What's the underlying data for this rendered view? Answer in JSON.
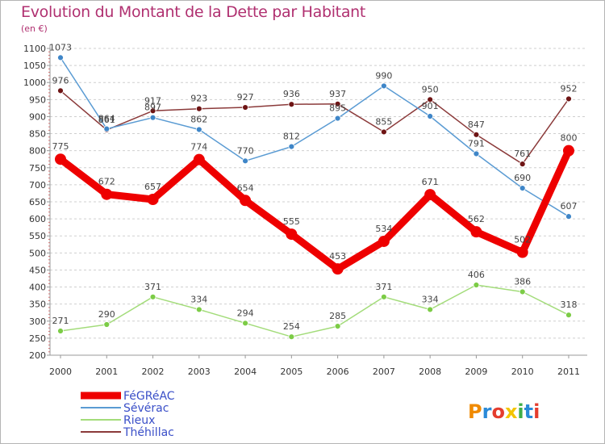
{
  "title": "Evolution du Montant de la Dette par Habitant",
  "subtitle": "(en €)",
  "logo": "Proxiti",
  "colors": {
    "title": "#b03070",
    "legend_text": "#3a4fc8",
    "grid": "#cfcfcf"
  },
  "chart_data": {
    "type": "line",
    "title": "Evolution du Montant de la Dette par Habitant",
    "ylabel": "(en €)",
    "xlabel": "",
    "x": [
      "2000",
      "2001",
      "2002",
      "2003",
      "2004",
      "2005",
      "2006",
      "2007",
      "2008",
      "2009",
      "2010",
      "2011"
    ],
    "ylim": [
      200,
      1100
    ],
    "yticks": [
      200,
      250,
      300,
      350,
      400,
      450,
      500,
      550,
      600,
      650,
      700,
      750,
      800,
      850,
      900,
      950,
      1000,
      1050,
      1100
    ],
    "grid": "horizontal dashed",
    "legend_position": "bottom-left",
    "series": [
      {
        "name": "FéGRéAC",
        "color": "#ee0000",
        "emphasis": "thick",
        "values": [
          775,
          672,
          657,
          774,
          654,
          555,
          453,
          534,
          671,
          562,
          502,
          800
        ]
      },
      {
        "name": "Sévérac",
        "color": "#5a9bd3",
        "marker_color": "#3f86c8",
        "emphasis": "thin",
        "values": [
          1073,
          864,
          897,
          862,
          770,
          812,
          895,
          990,
          901,
          791,
          690,
          607
        ]
      },
      {
        "name": "Rieux",
        "color": "#a3dc7a",
        "marker_color": "#7ccc46",
        "emphasis": "thin",
        "values": [
          271,
          290,
          371,
          334,
          294,
          254,
          285,
          371,
          334,
          406,
          386,
          318
        ]
      },
      {
        "name": "Théhillac",
        "color": "#8b3a3a",
        "marker_color": "#6e1414",
        "emphasis": "thin",
        "values": [
          976,
          861,
          917,
          923,
          927,
          936,
          937,
          855,
          950,
          847,
          761,
          952
        ]
      }
    ]
  }
}
